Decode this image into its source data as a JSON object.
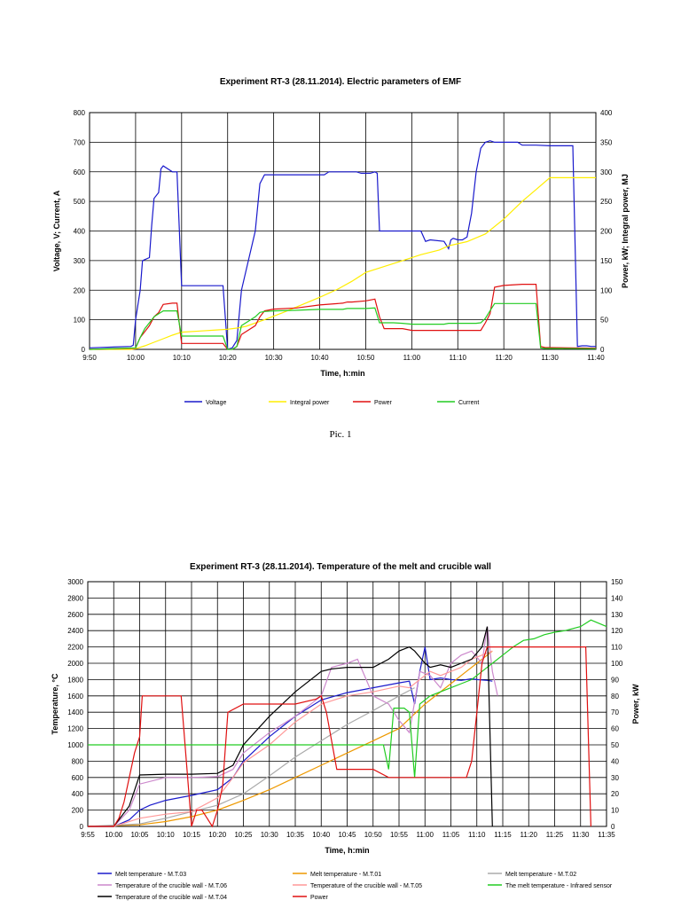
{
  "caption": "Pic. 1",
  "chart_data": [
    {
      "type": "line",
      "title": "Experiment RT-3 (28.11.2014). Electric parameters of EMF",
      "xlabel": "Time, h:min",
      "ylabel": "Voltage, V; Current, A",
      "y2label": "Power, kW; Integral power, MJ",
      "xticks": [
        "9:50",
        "10:00",
        "10:10",
        "10:20",
        "10:30",
        "10:40",
        "10:50",
        "11:00",
        "11:10",
        "11:20",
        "11:30",
        "11:40"
      ],
      "xlim": [
        0,
        110
      ],
      "ylim": [
        0,
        800
      ],
      "yticks": [
        "0",
        "100",
        "200",
        "300",
        "400",
        "500",
        "600",
        "700",
        "800"
      ],
      "y2lim": [
        0,
        400
      ],
      "y2ticks": [
        "0",
        "50",
        "100",
        "150",
        "200",
        "250",
        "300",
        "350",
        "400"
      ],
      "grid": true,
      "legend_position": "bottom",
      "series": [
        {
          "name": "Voltage",
          "axis": "left",
          "color": "#1a1acc",
          "x": [
            0,
            9,
            9.5,
            10,
            11,
            11.5,
            13,
            13.5,
            14,
            15,
            15.5,
            16,
            18,
            19,
            20,
            28,
            29,
            30,
            31,
            32,
            33,
            36,
            37,
            38,
            50,
            51,
            52,
            56,
            58,
            59,
            61,
            62,
            62.5,
            63,
            64,
            66,
            68,
            71,
            72,
            73,
            74,
            77,
            78,
            78.5,
            79,
            80,
            81,
            82,
            83,
            84,
            85,
            86,
            87,
            88,
            93,
            94,
            94.5,
            97,
            100,
            105,
            106,
            107,
            108,
            109,
            110
          ],
          "y": [
            5,
            10,
            14,
            100,
            200,
            300,
            310,
            420,
            510,
            530,
            610,
            620,
            600,
            600,
            215,
            215,
            215,
            0,
            5,
            30,
            200,
            400,
            560,
            590,
            590,
            590,
            600,
            600,
            600,
            595,
            595,
            600,
            595,
            400,
            400,
            400,
            400,
            400,
            400,
            365,
            370,
            365,
            340,
            370,
            375,
            370,
            370,
            380,
            460,
            600,
            680,
            700,
            705,
            700,
            700,
            690,
            690,
            690,
            688,
            688,
            10,
            12,
            12,
            10,
            10
          ]
        },
        {
          "name": "Integral power",
          "axis": "right",
          "color": "#ffee00",
          "x": [
            0,
            9,
            10,
            12,
            14,
            16,
            18,
            20,
            24,
            28,
            30,
            32,
            34,
            38,
            42,
            46,
            50,
            54,
            57,
            60,
            64,
            68,
            72,
            76,
            78,
            82,
            86,
            90,
            94,
            97,
            100,
            105,
            110
          ],
          "y": [
            0,
            0,
            1,
            6,
            12,
            18,
            24,
            29,
            31,
            33,
            34,
            36,
            39,
            50,
            62,
            75,
            88,
            102,
            115,
            130,
            140,
            150,
            160,
            168,
            175,
            182,
            195,
            220,
            250,
            270,
            290,
            290,
            290
          ]
        },
        {
          "name": "Power",
          "axis": "right",
          "color": "#e01010",
          "x": [
            0,
            10,
            11,
            12,
            13,
            14,
            15,
            16,
            18,
            19,
            20,
            28,
            29,
            30,
            31,
            32,
            33,
            36,
            37,
            38,
            40,
            45,
            50,
            55,
            56,
            57,
            60,
            62,
            63,
            64,
            66,
            68,
            70,
            72,
            74,
            77,
            78,
            80,
            84,
            85,
            86,
            87,
            88,
            90,
            94,
            97,
            98,
            99,
            100,
            110
          ],
          "y": [
            0,
            2,
            20,
            30,
            40,
            55,
            62,
            76,
            78,
            78,
            10,
            10,
            10,
            0,
            0,
            5,
            25,
            40,
            55,
            65,
            68,
            70,
            75,
            78,
            80,
            80,
            82,
            85,
            55,
            35,
            35,
            35,
            32,
            32,
            32,
            32,
            32,
            32,
            32,
            32,
            45,
            60,
            105,
            108,
            110,
            110,
            5,
            3,
            3,
            2
          ]
        },
        {
          "name": "Current",
          "axis": "left",
          "color": "#22cc22",
          "x": [
            0,
            10,
            11,
            12,
            13,
            14,
            15,
            16,
            18,
            19,
            20,
            28,
            29,
            30,
            31,
            32,
            33,
            36,
            37,
            38,
            40,
            45,
            50,
            55,
            56,
            57,
            60,
            62,
            63,
            64,
            66,
            68,
            70,
            72,
            74,
            77,
            78,
            80,
            84,
            85,
            86,
            87,
            88,
            90,
            94,
            97,
            98,
            99,
            100,
            110
          ],
          "y": [
            0,
            5,
            40,
            70,
            90,
            110,
            120,
            130,
            130,
            130,
            45,
            45,
            45,
            0,
            0,
            10,
            80,
            110,
            125,
            128,
            130,
            132,
            135,
            135,
            138,
            138,
            138,
            140,
            90,
            90,
            90,
            88,
            85,
            85,
            85,
            85,
            88,
            88,
            88,
            90,
            105,
            130,
            155,
            155,
            155,
            155,
            5,
            3,
            3,
            2
          ]
        }
      ]
    },
    {
      "type": "line",
      "title": "Experiment RT-3 (28.11.2014). Temperature of the melt and crucible wall",
      "xlabel": "Time, h:min",
      "ylabel": "Temperature, °C",
      "y2label": "Power, kW",
      "xticks": [
        "9:55",
        "10:00",
        "10:05",
        "10:10",
        "10:15",
        "10:20",
        "10:25",
        "10:30",
        "10:35",
        "10:40",
        "10:45",
        "10:50",
        "10:55",
        "11:00",
        "11:05",
        "11:10",
        "11:15",
        "11:20",
        "11:25",
        "11:30",
        "11:35"
      ],
      "xlim": [
        0,
        100
      ],
      "ylim": [
        0,
        3000
      ],
      "yticks": [
        "0",
        "200",
        "400",
        "600",
        "800",
        "1000",
        "1200",
        "1400",
        "1600",
        "1800",
        "2000",
        "2200",
        "2400",
        "2600",
        "2800",
        "3000"
      ],
      "y2lim": [
        0,
        150
      ],
      "y2ticks": [
        "0",
        "10",
        "20",
        "30",
        "40",
        "50",
        "60",
        "70",
        "80",
        "90",
        "100",
        "110",
        "120",
        "130",
        "140",
        "150"
      ],
      "grid": true,
      "legend_position": "bottom",
      "series": [
        {
          "name": "Melt temperature - M.T.03",
          "axis": "left",
          "color": "#1a1acc",
          "x": [
            0,
            5,
            8,
            10,
            12,
            15,
            20,
            25,
            28,
            30,
            35,
            40,
            45,
            50,
            55,
            60,
            62,
            63,
            64,
            65,
            66,
            68,
            70,
            72,
            74,
            75,
            77,
            78
          ],
          "y": [
            0,
            0,
            80,
            200,
            260,
            320,
            380,
            450,
            600,
            800,
            1100,
            1350,
            1550,
            1640,
            1700,
            1760,
            1780,
            1500,
            1900,
            2200,
            1800,
            1820,
            1800,
            1790,
            1810,
            1800,
            1790,
            1780
          ]
        },
        {
          "name": "Melt temperature - M.T.01",
          "axis": "left",
          "color": "#ee9900",
          "x": [
            0,
            10,
            15,
            20,
            25,
            30,
            35,
            40,
            45,
            50,
            55,
            60,
            65,
            70,
            73,
            75,
            77,
            78
          ],
          "y": [
            0,
            20,
            60,
            120,
            200,
            320,
            450,
            600,
            750,
            900,
            1050,
            1200,
            1500,
            1750,
            1900,
            2000,
            2100,
            2150
          ]
        },
        {
          "name": "Melt temperature - M.T.02",
          "axis": "left",
          "color": "#aaaaaa",
          "x": [
            0,
            10,
            15,
            20,
            25,
            30,
            35,
            40,
            45,
            50,
            55,
            60,
            63
          ],
          "y": [
            0,
            30,
            100,
            180,
            260,
            400,
            620,
            850,
            1050,
            1250,
            1420,
            1600,
            1700
          ]
        },
        {
          "name": "Temperature of the crucible wall - M.T.06",
          "axis": "left",
          "color": "#cc88cc",
          "x": [
            0,
            5,
            8,
            10,
            15,
            20,
            25,
            28,
            30,
            35,
            40,
            45,
            47,
            50,
            52,
            55,
            58,
            60,
            62,
            64,
            66,
            68,
            70,
            72,
            74,
            76,
            77,
            78,
            79
          ],
          "y": [
            0,
            0,
            200,
            520,
            600,
            600,
            610,
            700,
            900,
            1150,
            1350,
            1600,
            1950,
            2000,
            2050,
            1600,
            1500,
            1300,
            1150,
            1900,
            1850,
            1700,
            2000,
            2100,
            2150,
            2000,
            2450,
            1900,
            1600
          ]
        },
        {
          "name": "Temperature of the crucible wall - M.T.05",
          "axis": "left",
          "color": "#ff9999",
          "x": [
            0,
            5,
            10,
            15,
            20,
            25,
            28,
            30,
            35,
            40,
            45,
            50,
            55,
            60,
            62,
            64,
            66,
            68,
            70,
            72,
            74,
            76,
            78
          ],
          "y": [
            0,
            0,
            100,
            150,
            180,
            350,
            600,
            780,
            1000,
            1280,
            1500,
            1600,
            1650,
            1720,
            1700,
            1800,
            1900,
            1850,
            1900,
            1950,
            2050,
            2100,
            2150
          ]
        },
        {
          "name": "The melt temperature - Infrared sensor",
          "axis": "left",
          "color": "#22cc22",
          "x": [
            0,
            57,
            58,
            59,
            60,
            61,
            62,
            63,
            64,
            65,
            66,
            68,
            70,
            72,
            74,
            76,
            78,
            80,
            82,
            84,
            86,
            88,
            90,
            92,
            95,
            97,
            100
          ],
          "y": [
            1000,
            1000,
            700,
            1450,
            1450,
            1450,
            1400,
            600,
            1500,
            1550,
            1600,
            1650,
            1700,
            1750,
            1800,
            1900,
            2000,
            2100,
            2200,
            2280,
            2300,
            2350,
            2380,
            2400,
            2450,
            2530,
            2450
          ]
        },
        {
          "name": "Temperature of the crucible wall - M.T.04",
          "axis": "left",
          "color": "#000000",
          "x": [
            0,
            5,
            8,
            10,
            15,
            20,
            25,
            28,
            30,
            35,
            40,
            45,
            47,
            50,
            55,
            58,
            60,
            62,
            63,
            65,
            66,
            68,
            70,
            72,
            74,
            76,
            77,
            78
          ],
          "y": [
            0,
            0,
            250,
            630,
            640,
            640,
            650,
            750,
            1000,
            1350,
            1650,
            1900,
            1930,
            1950,
            1950,
            2050,
            2150,
            2200,
            2150,
            2000,
            1950,
            1980,
            1950,
            2000,
            2050,
            2200,
            2450,
            0
          ]
        },
        {
          "name": "Power",
          "axis": "right",
          "color": "#e01010",
          "x": [
            0,
            5,
            6,
            7,
            8,
            9,
            10,
            10.5,
            11,
            15,
            18,
            20,
            21,
            22,
            23,
            24,
            25,
            26,
            27,
            30,
            35,
            40,
            44,
            45,
            46,
            48,
            50,
            55,
            58,
            59,
            60,
            63,
            66,
            70,
            73,
            74,
            75,
            76,
            77,
            78,
            80,
            85,
            90,
            95,
            96,
            97
          ],
          "y": [
            0,
            0,
            5,
            15,
            30,
            45,
            55,
            80,
            80,
            80,
            80,
            0,
            10,
            10,
            5,
            0,
            10,
            25,
            70,
            75,
            75,
            75,
            78,
            80,
            70,
            35,
            35,
            35,
            30,
            30,
            30,
            30,
            30,
            30,
            30,
            40,
            70,
            100,
            110,
            110,
            110,
            110,
            110,
            110,
            110,
            0
          ]
        }
      ]
    }
  ]
}
